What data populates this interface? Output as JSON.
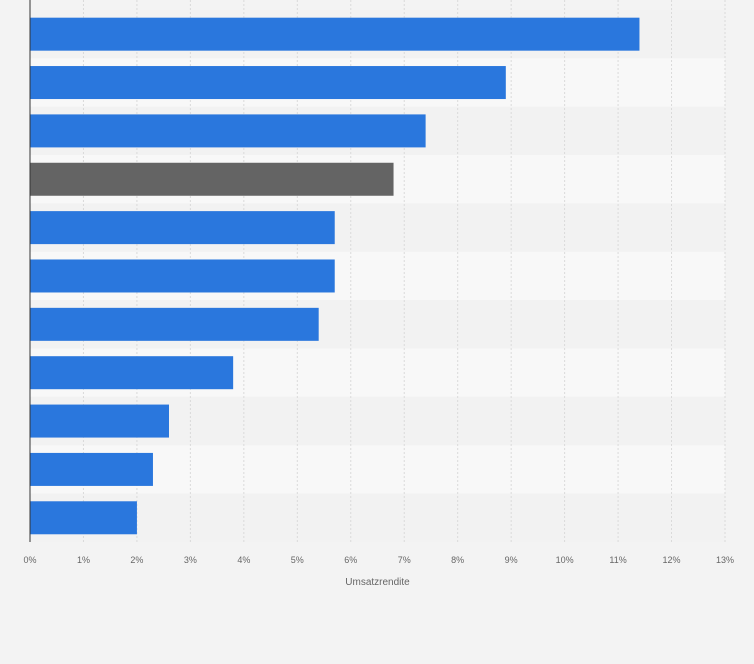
{
  "chart_data": {
    "type": "bar",
    "orientation": "horizontal",
    "title": "",
    "xlabel": "Umsatzrendite",
    "ylabel": "",
    "xlim": [
      0,
      13
    ],
    "x_ticks": [
      "0%",
      "1%",
      "2%",
      "3%",
      "4%",
      "5%",
      "6%",
      "7%",
      "8%",
      "9%",
      "10%",
      "11%",
      "12%",
      "13%"
    ],
    "grid": true,
    "legend": "none",
    "categories": [
      "",
      "",
      "",
      "",
      "",
      "",
      "",
      "",
      "",
      "",
      ""
    ],
    "values": [
      11.4,
      8.9,
      7.4,
      6.8,
      5.7,
      5.7,
      5.4,
      3.8,
      2.6,
      2.3,
      2.0
    ],
    "bar_colors": [
      "#2a77dd",
      "#2a77dd",
      "#2a77dd",
      "#646464",
      "#2a77dd",
      "#2a77dd",
      "#2a77dd",
      "#2a77dd",
      "#2a77dd",
      "#2a77dd",
      "#2a77dd"
    ]
  },
  "colors": {
    "page_background": "#f3f3f3",
    "band_light": "#f8f8f8",
    "band_dark": "#f2f2f2",
    "grid": "#dadada",
    "axis": "#333333",
    "text": "#666666"
  }
}
